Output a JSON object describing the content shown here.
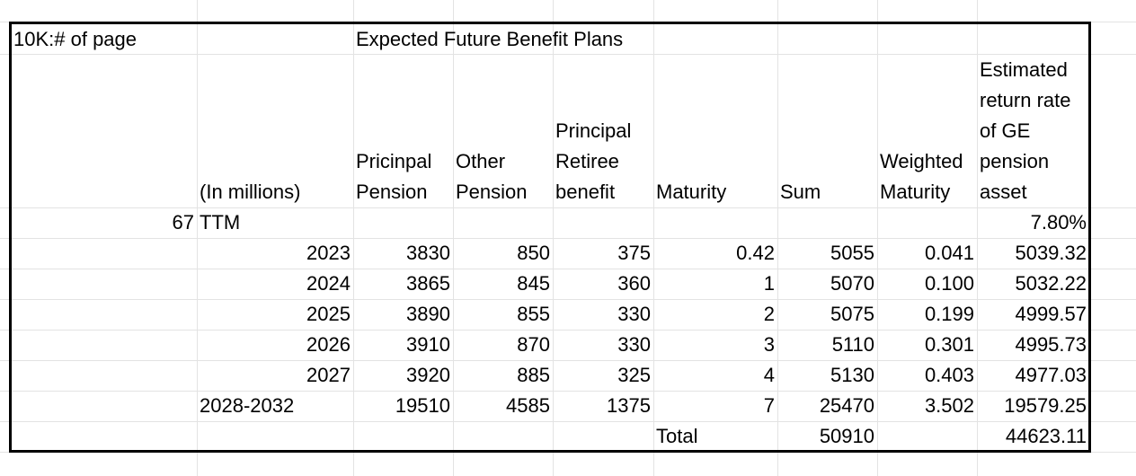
{
  "cells": {
    "a1": "10K:# of page",
    "d1": "Expected Future Benefit Plans",
    "header": {
      "in_millions": "(In millions)",
      "principal_pension": "Pricinpal Pension",
      "other_pension": "Other Pension",
      "retiree_benefit": "Principal Retiree benefit",
      "maturity": "Maturity",
      "sum": "Sum",
      "weighted_maturity": "Weighted Maturity",
      "return_rate": "Estimated return rate of GE pension asset"
    },
    "ttm_row": {
      "page": "67",
      "label": "TTM",
      "rate": "7.80%"
    },
    "rows": [
      {
        "year": "2023",
        "principal": "3830",
        "other": "850",
        "retiree": "375",
        "maturity": "0.42",
        "sum": "5055",
        "weighted": "0.041",
        "pv": "5039.32"
      },
      {
        "year": "2024",
        "principal": "3865",
        "other": "845",
        "retiree": "360",
        "maturity": "1",
        "sum": "5070",
        "weighted": "0.100",
        "pv": "5032.22"
      },
      {
        "year": "2025",
        "principal": "3890",
        "other": "855",
        "retiree": "330",
        "maturity": "2",
        "sum": "5075",
        "weighted": "0.199",
        "pv": "4999.57"
      },
      {
        "year": "2026",
        "principal": "3910",
        "other": "870",
        "retiree": "330",
        "maturity": "3",
        "sum": "5110",
        "weighted": "0.301",
        "pv": "4995.73"
      },
      {
        "year": "2027",
        "principal": "3920",
        "other": "885",
        "retiree": "325",
        "maturity": "4",
        "sum": "5130",
        "weighted": "0.403",
        "pv": "4977.03"
      },
      {
        "year": "2028-2032",
        "principal": "19510",
        "other": "4585",
        "retiree": "1375",
        "maturity": "7",
        "sum": "25470",
        "weighted": "3.502",
        "pv": "19579.25"
      }
    ],
    "total_row": {
      "label": "Total",
      "sum": "50910",
      "pv": "44623.11"
    }
  }
}
